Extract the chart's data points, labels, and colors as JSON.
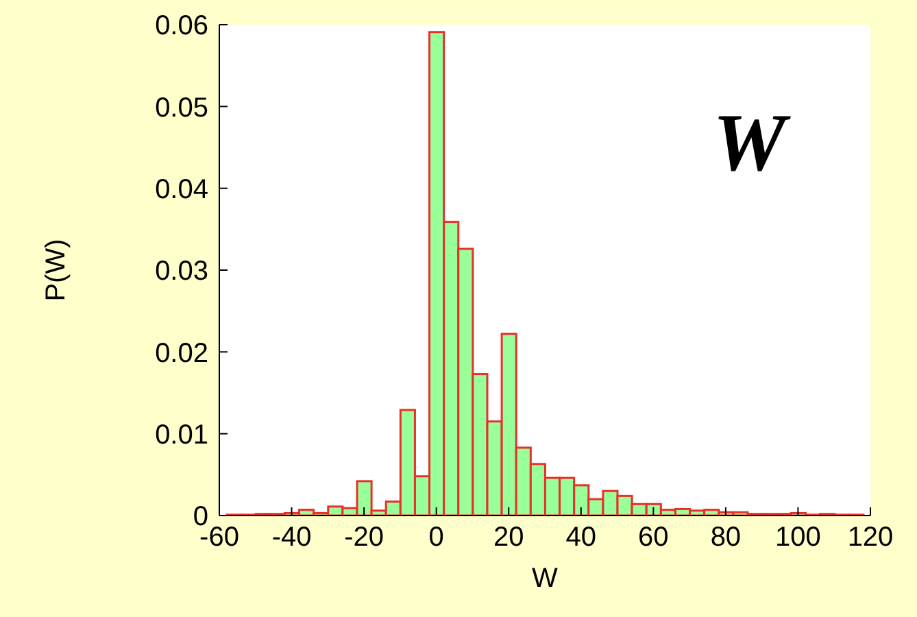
{
  "chart_data": {
    "type": "histogram",
    "xlabel": "W",
    "ylabel": "P(W)",
    "annotations": [
      "W"
    ],
    "bins": [
      -58,
      -54,
      -50,
      -46,
      -42,
      -38,
      -34,
      -30,
      -26,
      -22,
      -18,
      -14,
      -10,
      -6,
      -2,
      2,
      6,
      10,
      14,
      18,
      22,
      26,
      30,
      34,
      38,
      42,
      46,
      50,
      54,
      58,
      62,
      66,
      70,
      74,
      78,
      82,
      86,
      90,
      94,
      98,
      102,
      106,
      110,
      114,
      118
    ],
    "values": [
      0.0001,
      0.0001,
      0.0002,
      0.0002,
      0.0003,
      0.0007,
      0.0003,
      0.0011,
      0.0009,
      0.0042,
      0.0006,
      0.0017,
      0.0129,
      0.0048,
      0.0591,
      0.0359,
      0.0326,
      0.0173,
      0.0115,
      0.0222,
      0.0083,
      0.0063,
      0.0046,
      0.0046,
      0.0037,
      0.002,
      0.003,
      0.0024,
      0.0014,
      0.0014,
      0.0007,
      0.0008,
      0.0006,
      0.0007,
      0.0004,
      0.0004,
      0.0002,
      0.0002,
      0.0002,
      0.0003,
      0.0001,
      0.0002,
      0.0001,
      0.0001
    ],
    "color": "#99ff99",
    "xlim": [
      -60,
      120
    ],
    "xticks": [
      -60,
      -40,
      -20,
      0,
      20,
      40,
      60,
      80,
      100,
      120
    ],
    "ylim": [
      0,
      0.06
    ],
    "yticks": [
      0,
      0.01,
      0.02,
      0.03,
      0.04,
      0.05,
      0.06
    ]
  }
}
